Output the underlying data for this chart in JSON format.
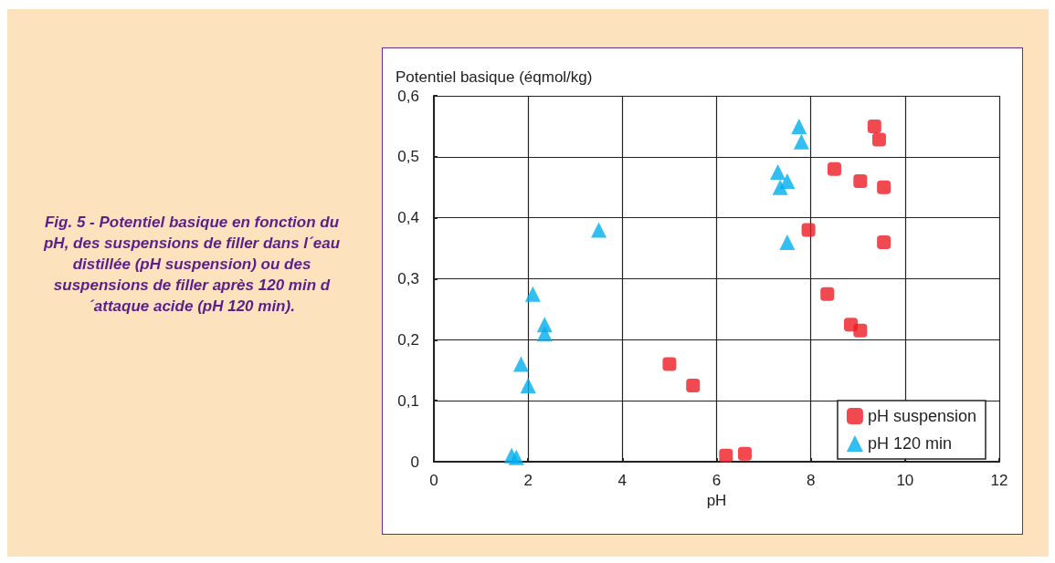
{
  "chart_data": {
    "type": "scatter",
    "ylabel": "Potentiel basique (éqmol/kg)",
    "xlabel": "pH",
    "annotations": [
      "Fig. 5 - Potentiel basique en fonction du pH, des suspensions de filler dans l´eau distillée (pH suspension) ou des suspensions de filler après 120 min d´attaque acide (pH 120 min)."
    ],
    "series": [
      {
        "name": "pH suspension",
        "color": "#ed1c24",
        "marker": "square",
        "x": [
          5.0,
          5.5,
          6.2,
          6.6,
          7.95,
          8.35,
          8.85,
          9.05,
          8.5,
          9.05,
          9.55,
          9.55,
          9.35,
          9.45
        ],
        "values": [
          0.16,
          0.125,
          0.01,
          0.013,
          0.38,
          0.275,
          0.225,
          0.215,
          0.48,
          0.46,
          0.45,
          0.36,
          0.55,
          0.528
        ]
      },
      {
        "name": "pH 120 min",
        "color": "#00aeef",
        "marker": "triangle",
        "x": [
          1.65,
          1.75,
          1.85,
          2.0,
          2.1,
          2.35,
          2.35,
          3.5,
          7.3,
          7.35,
          7.5,
          7.5,
          7.75,
          7.8
        ],
        "values": [
          0.01,
          0.007,
          0.16,
          0.125,
          0.275,
          0.225,
          0.21,
          0.38,
          0.475,
          0.45,
          0.46,
          0.36,
          0.55,
          0.525
        ]
      }
    ],
    "xlim": [
      0,
      12
    ],
    "xticks": [
      0,
      2,
      4,
      6,
      8,
      10,
      12
    ],
    "ylim": [
      0,
      0.6
    ],
    "yticks": [
      0,
      {
        "value": 0.1,
        "label": "0,1"
      },
      {
        "value": 0.2,
        "label": "0,2"
      },
      {
        "value": 0.3,
        "label": "0,3"
      },
      {
        "value": 0.4,
        "label": "0,4"
      },
      {
        "value": 0.5,
        "label": "0,5"
      },
      {
        "value": 0.6,
        "label": "0,6"
      }
    ],
    "grid": true,
    "legend": "bottom right"
  }
}
